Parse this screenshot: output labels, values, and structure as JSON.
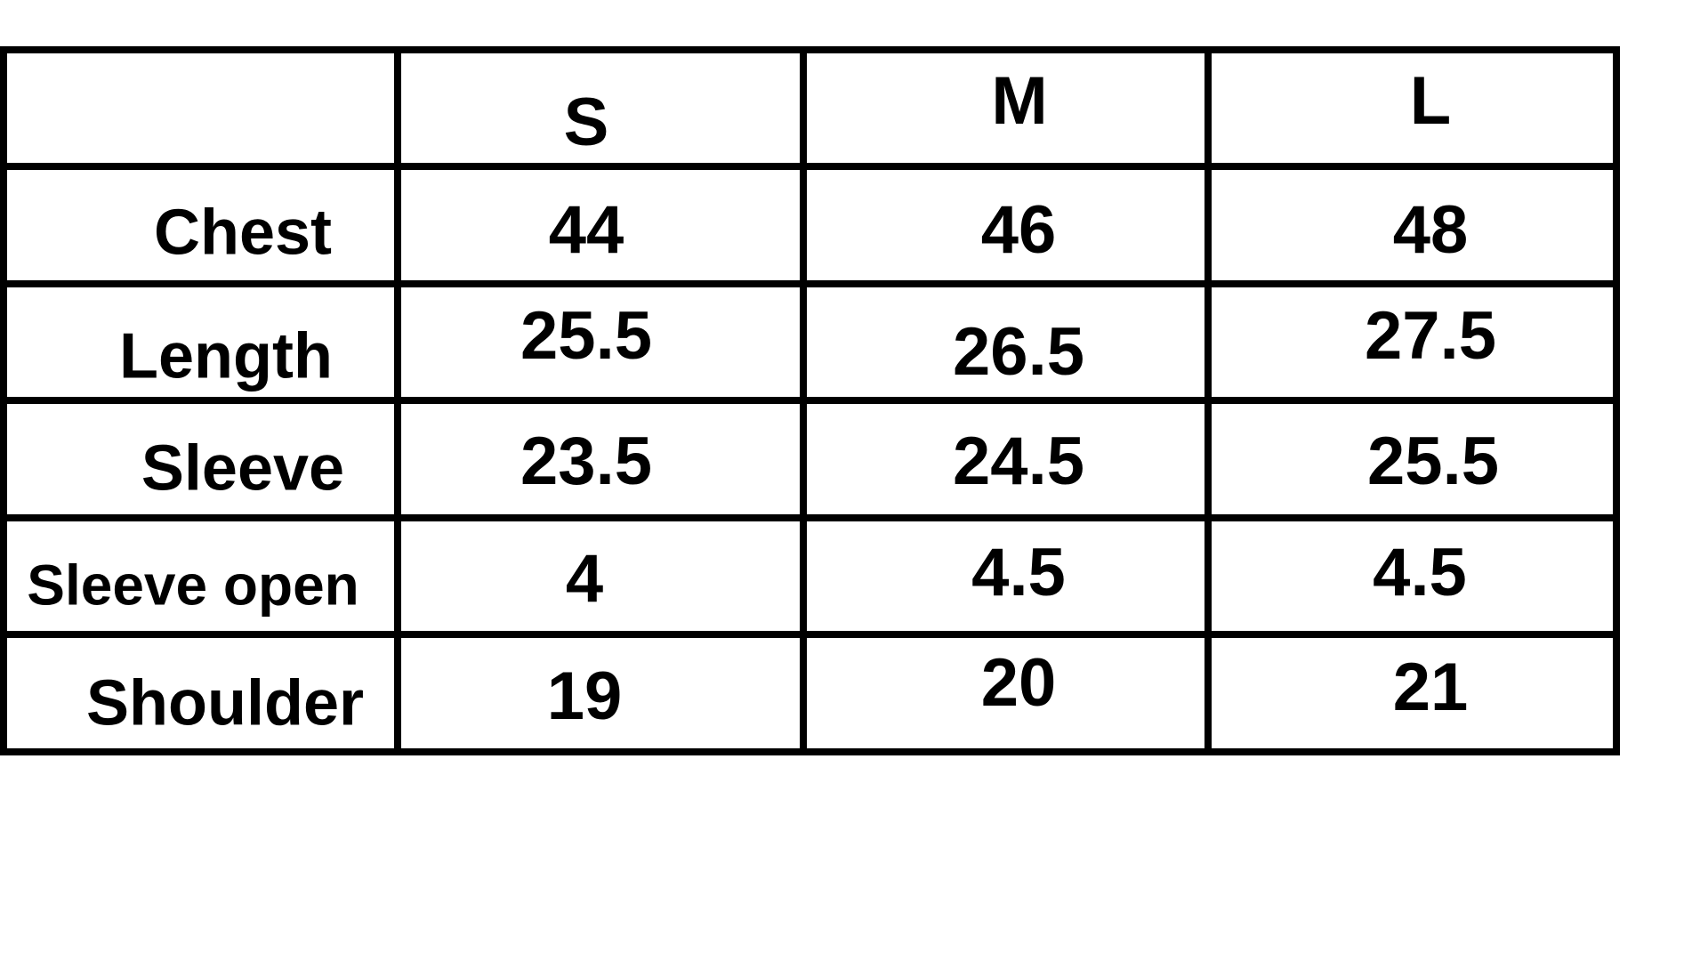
{
  "table": {
    "columns": [
      "",
      "S",
      "M",
      "L"
    ],
    "rows": [
      {
        "label": "Chest",
        "values": [
          "44",
          "46",
          "48"
        ]
      },
      {
        "label": "Length",
        "values": [
          "25.5",
          "26.5",
          "27.5"
        ]
      },
      {
        "label": "Sleeve",
        "values": [
          "23.5",
          "24.5",
          "25.5"
        ]
      },
      {
        "label": "Sleeve open",
        "values": [
          "4",
          "4.5",
          "4.5"
        ]
      },
      {
        "label": "Shoulder",
        "values": [
          "19",
          "20",
          "21"
        ]
      }
    ],
    "border_color": "#000000",
    "text_color": "#000000",
    "background": "#ffffff"
  }
}
